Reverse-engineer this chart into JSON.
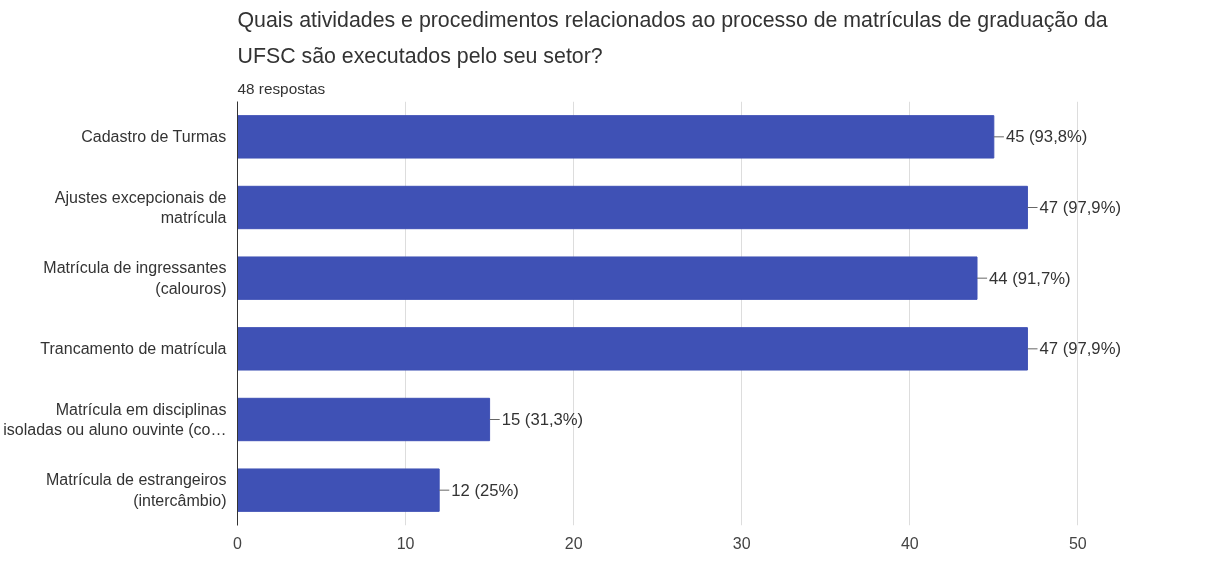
{
  "chart_data": {
    "type": "bar",
    "orientation": "horizontal",
    "title": "Quais atividades e procedimentos relacionados ao processo de matrículas de graduação da UFSC são executados pelo seu setor?",
    "subtitle": "48 respostas",
    "categories": [
      "Cadastro de Turmas",
      "Ajustes excepcionais de matrícula",
      "Matrícula de ingressantes (calouros)",
      "Trancamento de matrícula",
      "Matrícula em disciplinas isoladas ou aluno ouvinte (co…",
      "Matrícula de estrangeiros (intercâmbio)"
    ],
    "values": [
      45,
      47,
      44,
      47,
      15,
      12
    ],
    "value_labels": [
      "45 (93,8%)",
      "47 (97,9%)",
      "44 (91,7%)",
      "47 (97,9%)",
      "15 (31,3%)",
      "12 (25%)"
    ],
    "color": "#3f51b5",
    "xlim": [
      0,
      50
    ],
    "xticks": [
      0,
      10,
      20,
      30,
      40,
      50
    ],
    "grid": "x",
    "legend": false
  }
}
